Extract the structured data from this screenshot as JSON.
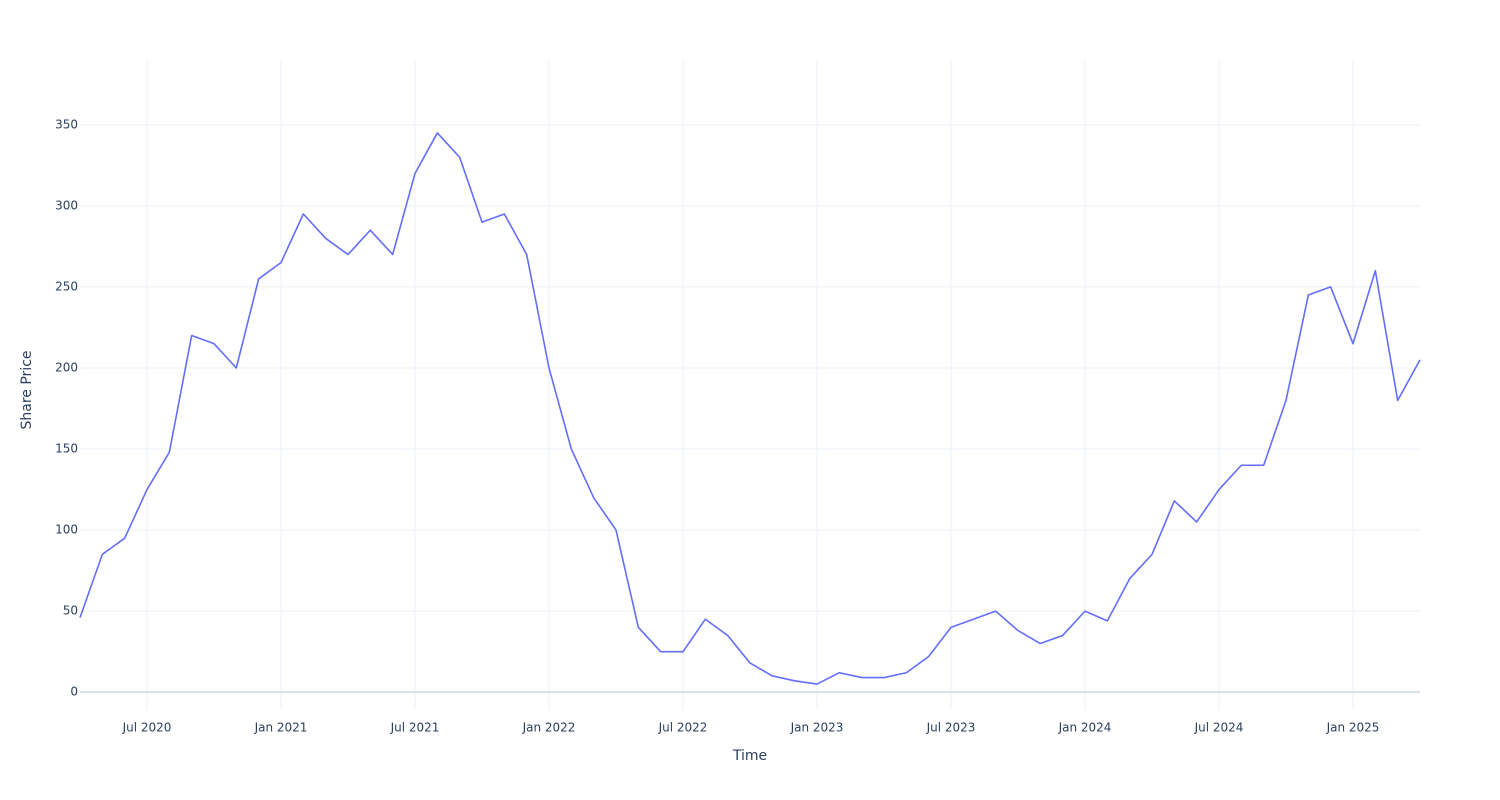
{
  "chart_data": {
    "type": "line",
    "x_label": "Time",
    "y_label": "Share Price",
    "x": [
      "2020-04",
      "2020-05",
      "2020-06",
      "2020-07",
      "2020-08",
      "2020-09",
      "2020-10",
      "2020-11",
      "2020-12",
      "2021-01",
      "2021-02",
      "2021-03",
      "2021-04",
      "2021-05",
      "2021-06",
      "2021-07",
      "2021-08",
      "2021-09",
      "2021-10",
      "2021-11",
      "2021-12",
      "2022-01",
      "2022-02",
      "2022-03",
      "2022-04",
      "2022-05",
      "2022-06",
      "2022-07",
      "2022-08",
      "2022-09",
      "2022-10",
      "2022-11",
      "2022-12",
      "2023-01",
      "2023-02",
      "2023-03",
      "2023-04",
      "2023-05",
      "2023-06",
      "2023-07",
      "2023-08",
      "2023-09",
      "2023-10",
      "2023-11",
      "2023-12",
      "2024-01",
      "2024-02",
      "2024-03",
      "2024-04",
      "2024-05",
      "2024-06",
      "2024-07",
      "2024-08",
      "2024-09",
      "2024-10",
      "2024-11",
      "2024-12",
      "2025-01",
      "2025-02",
      "2025-03",
      "2025-04"
    ],
    "values": [
      46,
      85,
      95,
      125,
      148,
      220,
      215,
      200,
      255,
      265,
      295,
      280,
      270,
      285,
      270,
      320,
      345,
      330,
      290,
      295,
      270,
      200,
      150,
      120,
      100,
      40,
      25,
      25,
      45,
      35,
      18,
      10,
      7,
      5,
      12,
      9,
      9,
      12,
      22,
      40,
      45,
      50,
      38,
      30,
      35,
      50,
      44,
      70,
      85,
      118,
      105,
      125,
      140,
      140,
      180,
      245,
      250,
      215,
      260,
      180,
      205
    ],
    "color": "#636efa",
    "xlim": [
      "2020-04",
      "2025-04"
    ],
    "xticks": [
      {
        "value": "2020-07",
        "label": "Jul 2020"
      },
      {
        "value": "2021-01",
        "label": "Jan 2021"
      },
      {
        "value": "2021-07",
        "label": "Jul 2021"
      },
      {
        "value": "2022-01",
        "label": "Jan 2022"
      },
      {
        "value": "2022-07",
        "label": "Jul 2022"
      },
      {
        "value": "2023-01",
        "label": "Jan 2023"
      },
      {
        "value": "2023-07",
        "label": "Jul 2023"
      },
      {
        "value": "2024-01",
        "label": "Jan 2024"
      },
      {
        "value": "2024-07",
        "label": "Jul 2024"
      },
      {
        "value": "2025-01",
        "label": "Jan 2025"
      }
    ],
    "ylim": [
      -11,
      390
    ],
    "yticks": [
      0,
      50,
      100,
      150,
      200,
      250,
      300,
      350
    ],
    "grid": true
  }
}
